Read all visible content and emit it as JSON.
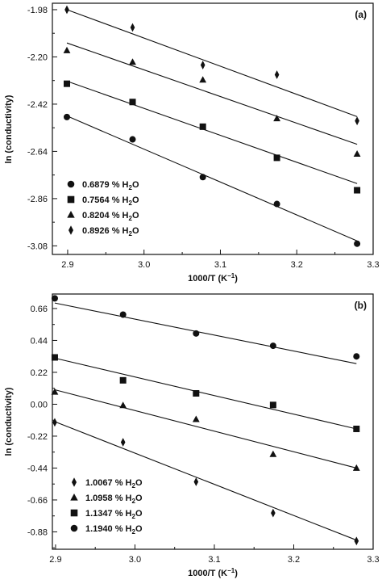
{
  "chart_data": [
    {
      "type": "scatter",
      "panel_label": "(a)",
      "xlabel": "1000/T (K",
      "xlabel_sup": "−1",
      "xlabel_end": ")",
      "ylabel": "ln (conductivity)",
      "xlim": [
        2.88,
        3.3
      ],
      "ylim": [
        -3.12,
        -1.95
      ],
      "xticks": [
        "2.9",
        "3.0",
        "3.1",
        "3.2",
        "3.3"
      ],
      "yticks": [
        "-1.98",
        "-2.20",
        "-2.42",
        "-2.64",
        "-2.86",
        "-3.08"
      ],
      "grid": false,
      "legend_position": "bottom-left",
      "series": [
        {
          "name": "0.6879 % H",
          "sub": "2",
          "suffix": "O",
          "marker": "circle",
          "x": [
            2.899,
            2.985,
            3.077,
            3.174,
            3.279
          ],
          "y": [
            -2.48,
            -2.584,
            -2.76,
            -2.885,
            -3.07
          ],
          "fit": [
            [
              2.899,
              -2.475
            ],
            [
              3.279,
              -3.057
            ]
          ]
        },
        {
          "name": "0.7564 % H",
          "sub": "2",
          "suffix": "O",
          "marker": "square",
          "x": [
            2.899,
            2.985,
            3.077,
            3.174,
            3.279
          ],
          "y": [
            -2.325,
            -2.41,
            -2.525,
            -2.67,
            -2.821
          ],
          "fit": [
            [
              2.899,
              -2.313
            ],
            [
              3.279,
              -2.79
            ]
          ]
        },
        {
          "name": "0.8204 % H",
          "sub": "2",
          "suffix": "O",
          "marker": "triangle",
          "x": [
            2.899,
            2.985,
            3.077,
            3.174,
            3.279
          ],
          "y": [
            -2.17,
            -2.224,
            -2.307,
            -2.487,
            -2.652
          ],
          "fit": [
            [
              2.899,
              -2.135
            ],
            [
              3.279,
              -2.607
            ]
          ]
        },
        {
          "name": "0.8926 % H",
          "sub": "2",
          "suffix": "O",
          "marker": "diamond",
          "x": [
            2.899,
            2.985,
            3.077,
            3.174,
            3.279
          ],
          "y": [
            -1.98,
            -2.063,
            -2.238,
            -2.283,
            -2.498
          ],
          "fit": [
            [
              2.899,
              -1.98
            ],
            [
              3.279,
              -2.478
            ]
          ]
        }
      ]
    },
    {
      "type": "scatter",
      "panel_label": "(b)",
      "xlabel": "1000/T (K",
      "xlabel_sup": "−1",
      "xlabel_end": ")",
      "ylabel": "ln (conductivity)",
      "xlim": [
        2.896,
        3.3
      ],
      "ylim": [
        -1.0,
        0.76
      ],
      "xticks": [
        "2.9",
        "3.0",
        "3.1",
        "3.2",
        "3.3"
      ],
      "yticks": [
        "0.66",
        "0.44",
        "0.22",
        "0.00",
        "-0.22",
        "-0.44",
        "-0.66",
        "-0.88"
      ],
      "grid": false,
      "legend_position": "bottom-left",
      "series": [
        {
          "name": "1.0067 % H",
          "sub": "2",
          "suffix": "O",
          "marker": "diamond",
          "x": [
            2.899,
            2.985,
            3.077,
            3.174,
            3.279
          ],
          "y": [
            -0.125,
            -0.262,
            -0.535,
            -0.75,
            -0.943
          ],
          "fit": [
            [
              2.899,
              -0.12
            ],
            [
              3.279,
              -0.937
            ]
          ]
        },
        {
          "name": "1.0958 % H",
          "sub": "2",
          "suffix": "O",
          "marker": "triangle",
          "x": [
            2.899,
            2.985,
            3.077,
            3.174,
            3.279
          ],
          "y": [
            0.085,
            -0.008,
            -0.104,
            -0.345,
            -0.44
          ],
          "fit": [
            [
              2.899,
              0.1
            ],
            [
              3.279,
              -0.44
            ]
          ]
        },
        {
          "name": "1.1347 % H",
          "sub": "2",
          "suffix": "O",
          "marker": "square",
          "x": [
            2.899,
            2.985,
            3.077,
            3.174,
            3.279
          ],
          "y": [
            0.323,
            0.165,
            0.075,
            -0.005,
            -0.17
          ],
          "fit": [
            [
              2.899,
              0.318
            ],
            [
              3.279,
              -0.17
            ]
          ]
        },
        {
          "name": "1.1940 % H",
          "sub": "2",
          "suffix": "O",
          "marker": "circle",
          "x": [
            2.899,
            2.985,
            3.077,
            3.174,
            3.279
          ],
          "y": [
            0.73,
            0.618,
            0.488,
            0.403,
            0.33
          ],
          "fit": [
            [
              2.899,
              0.698
            ],
            [
              3.279,
              0.28
            ]
          ]
        }
      ]
    }
  ]
}
